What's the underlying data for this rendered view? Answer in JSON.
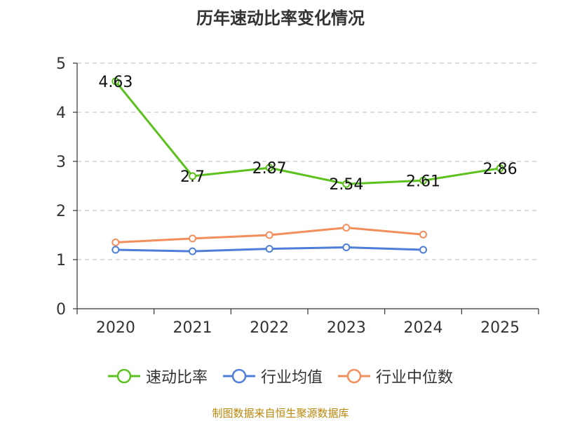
{
  "chart_data": {
    "type": "line",
    "title": "历年速动比率变化情况",
    "categories": [
      "2020",
      "2021",
      "2022",
      "2023",
      "2024",
      "2025"
    ],
    "ylim": [
      0,
      5
    ],
    "yticks": [
      0,
      1,
      2,
      3,
      4,
      5
    ],
    "grid": true,
    "legend_position": "bottom",
    "series": [
      {
        "name": "速动比率",
        "color": "#5bc11d",
        "values": [
          4.63,
          2.7,
          2.87,
          2.54,
          2.61,
          2.86
        ],
        "labels": [
          "4.63",
          "2.7",
          "2.87",
          "2.54",
          "2.61",
          "2.86"
        ]
      },
      {
        "name": "行业均值",
        "color": "#4e7fd8",
        "values": [
          1.2,
          1.17,
          1.22,
          1.25,
          1.2,
          null
        ]
      },
      {
        "name": "行业中位数",
        "color": "#f28e5c",
        "values": [
          1.35,
          1.43,
          1.5,
          1.65,
          1.51,
          null
        ]
      }
    ]
  },
  "source": "制图数据来自恒生聚源数据库"
}
